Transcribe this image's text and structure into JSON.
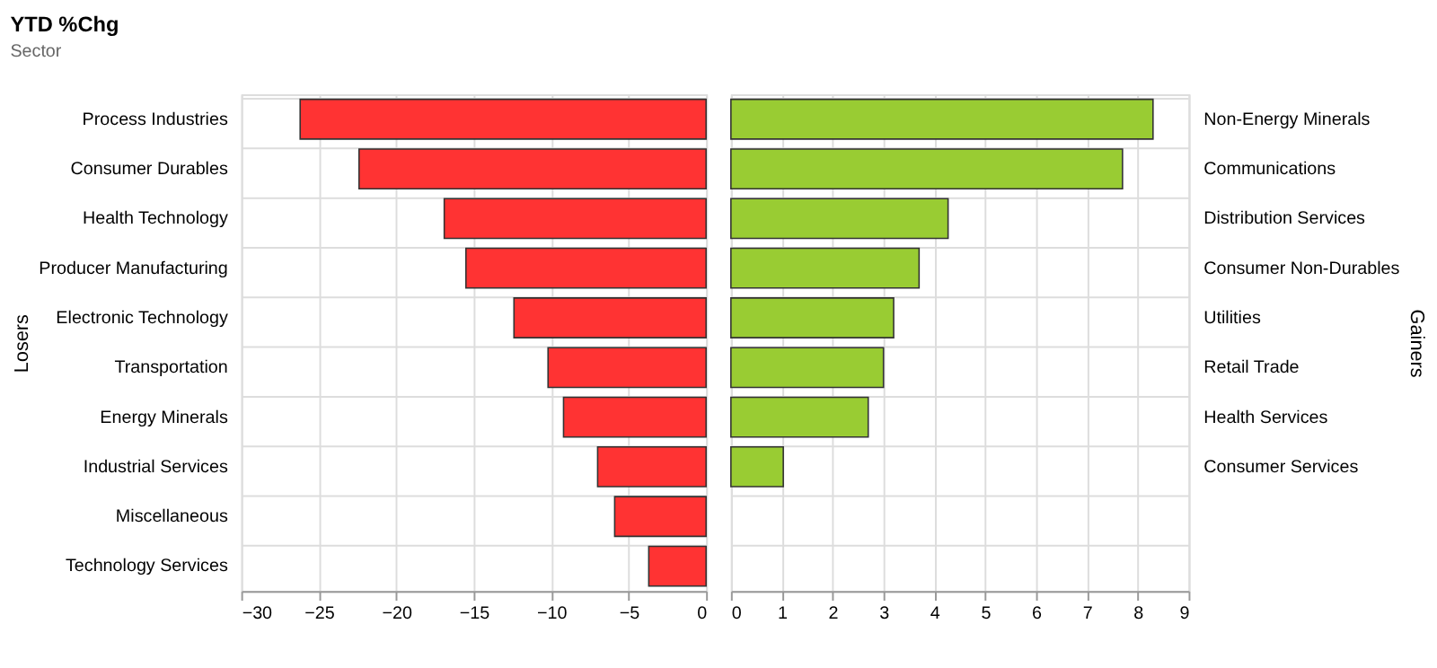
{
  "chart_data": [
    {
      "type": "bar",
      "orientation": "horizontal",
      "title": "YTD %Chg",
      "subtitle": "Sector",
      "ylabel": "Losers",
      "categories": [
        "Process Industries",
        "Consumer Durables",
        "Health Technology",
        "Producer Manufacturing",
        "Electronic Technology",
        "Transportation",
        "Energy Minerals",
        "Industrial Services",
        "Miscellaneous",
        "Technology Services"
      ],
      "values": [
        -26.2,
        -22.4,
        -16.9,
        -15.5,
        -12.4,
        -10.2,
        -9.2,
        -7.0,
        -5.9,
        -3.7
      ],
      "color": "#ff3333",
      "xlim": [
        -30,
        0
      ],
      "xticks": [
        -30,
        -25,
        -20,
        -15,
        -10,
        -5,
        0
      ],
      "grid": true
    },
    {
      "type": "bar",
      "orientation": "horizontal",
      "ylabel": "Gainers",
      "categories": [
        "Non-Energy Minerals",
        "Communications",
        "Distribution Services",
        "Consumer Non-Durables",
        "Utilities",
        "Retail Trade",
        "Health Services",
        "Consumer Services",
        null,
        null
      ],
      "values": [
        8.3,
        7.7,
        4.27,
        3.7,
        3.2,
        3.0,
        2.7,
        1.03,
        null,
        null
      ],
      "color": "#99cc33",
      "xlim": [
        0,
        9
      ],
      "xticks": [
        0,
        1,
        2,
        3,
        4,
        5,
        6,
        7,
        8,
        9
      ],
      "grid": true
    }
  ]
}
